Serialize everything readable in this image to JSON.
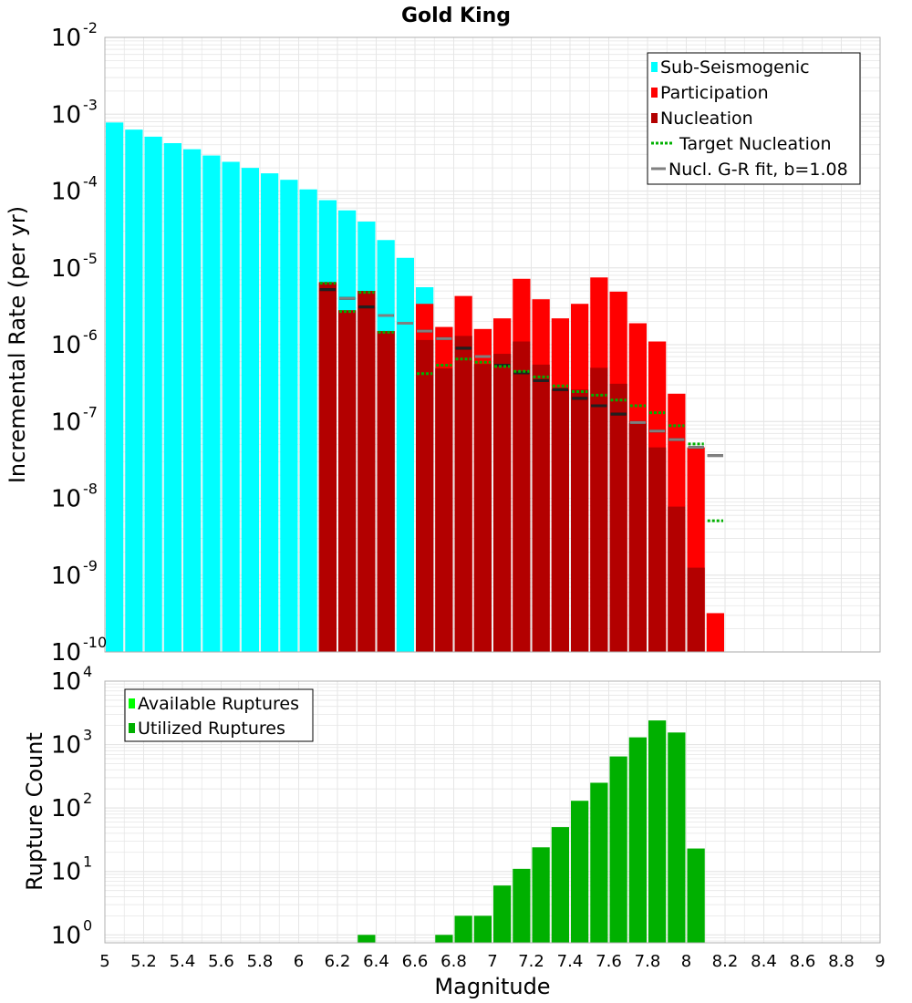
{
  "colors": {
    "sub_seismogenic": "#00ffff",
    "participation": "#ff0000",
    "nucleation": "#b30000",
    "target_nucleation": "#00b000",
    "gr_fit": "#808080",
    "available": "#00ff00",
    "utilized": "#00b000",
    "grid": "#e6e6e6",
    "frame": "#b0b0b0"
  },
  "chart_data": [
    {
      "type": "bar",
      "title": "Gold King",
      "xlabel": "",
      "ylabel": "Incremental Rate (per yr)",
      "y_scale": "log",
      "xlim": [
        5,
        9
      ],
      "ylim": [
        1e-10,
        0.01
      ],
      "y_tick_exponents": [
        -10,
        -9,
        -8,
        -7,
        -6,
        -5,
        -4,
        -3,
        -2
      ],
      "bin_width": 0.1,
      "legend_position": "top-right",
      "legend": [
        {
          "label": "Sub-Seismogenic",
          "symbol": "bar",
          "color": "#00ffff"
        },
        {
          "label": "Participation",
          "symbol": "bar",
          "color": "#ff0000"
        },
        {
          "label": "Nucleation",
          "symbol": "bar",
          "color": "#b30000"
        },
        {
          "label": "Target Nucleation",
          "symbol": "dotted-line",
          "color": "#00b000"
        },
        {
          "label": "Nucl. G-R fit, b=1.08",
          "symbol": "line",
          "color": "#808080"
        }
      ],
      "series": [
        {
          "name": "Sub-Seismogenic",
          "x": [
            5.05,
            5.15,
            5.25,
            5.35,
            5.45,
            5.55,
            5.65,
            5.75,
            5.85,
            5.95,
            6.05,
            6.15,
            6.25,
            6.35,
            6.45,
            6.55,
            6.65
          ],
          "values": [
            0.00078,
            0.00063,
            0.00051,
            0.00042,
            0.00035,
            0.00029,
            0.00024,
            0.0002,
            0.00017,
            0.00014,
            0.000105,
            7.6e-05,
            5.6e-05,
            4e-05,
            2.3e-05,
            1.35e-05,
            5.6e-06
          ]
        },
        {
          "name": "Participation",
          "x": [
            6.15,
            6.25,
            6.35,
            6.45,
            6.55,
            6.65,
            6.75,
            6.85,
            6.95,
            7.05,
            7.15,
            7.25,
            7.35,
            7.45,
            7.55,
            7.65,
            7.75,
            7.85,
            7.95,
            8.05,
            8.15
          ],
          "values": [
            6.5e-06,
            2.8e-06,
            5e-06,
            1.5e-06,
            1e-10,
            3.4e-06,
            1.7e-06,
            4.3e-06,
            1.6e-06,
            2.2e-06,
            7.2e-06,
            3.9e-06,
            2.2e-06,
            3.4e-06,
            7.5e-06,
            4.9e-06,
            1.9e-06,
            1.1e-06,
            2.3e-07,
            4.6e-08,
            3.2e-10
          ]
        },
        {
          "name": "Nucleation",
          "x": [
            6.15,
            6.25,
            6.35,
            6.45,
            6.55,
            6.65,
            6.75,
            6.85,
            6.95,
            7.05,
            7.15,
            7.25,
            7.35,
            7.45,
            7.55,
            7.65,
            7.75,
            7.85,
            7.95,
            8.05
          ],
          "values": [
            6.5e-06,
            2.8e-06,
            5e-06,
            1.5e-06,
            1e-10,
            1.15e-06,
            4.9e-07,
            1.3e-06,
            5.6e-07,
            7.6e-07,
            1.1e-06,
            5.5e-07,
            2.6e-07,
            2.6e-07,
            5e-07,
            3.1e-07,
            9.5e-08,
            4.6e-08,
            7.8e-09,
            1.25e-09
          ]
        },
        {
          "name": "Target Nucleation",
          "x": [
            6.15,
            6.25,
            6.35,
            6.45,
            6.65,
            6.75,
            6.85,
            6.95,
            7.05,
            7.15,
            7.25,
            7.35,
            7.45,
            7.55,
            7.65,
            7.75,
            7.85,
            7.95,
            8.05,
            8.15
          ],
          "values": [
            6.3e-06,
            2.7e-06,
            4.8e-06,
            1.45e-06,
            4.2e-07,
            5.4e-07,
            6.5e-07,
            5.9e-07,
            5.2e-07,
            4.5e-07,
            3.8e-07,
            2.9e-07,
            2.45e-07,
            2.2e-07,
            1.9e-07,
            1.6e-07,
            1.3e-07,
            8.8e-08,
            5.1e-08,
            5.1e-09
          ]
        },
        {
          "name": "Nucl. G-R fit, b=1.08",
          "x": [
            6.15,
            6.25,
            6.35,
            6.45,
            6.55,
            6.65,
            6.75,
            6.85,
            6.95,
            7.05,
            7.15,
            7.25,
            7.35,
            7.45,
            7.55,
            7.65,
            7.75,
            7.85,
            7.95,
            8.05,
            8.15
          ],
          "values": [
            5.2e-06,
            4e-06,
            3.1e-06,
            2.4e-06,
            1.9e-06,
            1.5e-06,
            1.2e-06,
            9e-07,
            7e-07,
            5.4e-07,
            4.3e-07,
            3.4e-07,
            2.6e-07,
            2e-07,
            1.6e-07,
            1.25e-07,
            9.7e-08,
            7.5e-08,
            5.8e-08,
            4.6e-08,
            3.6e-08
          ]
        }
      ]
    },
    {
      "type": "bar",
      "title": "",
      "xlabel": "Magnitude",
      "ylabel": "Rupture Count",
      "y_scale": "log",
      "xlim": [
        5,
        9
      ],
      "ylim": [
        0.75,
        10000
      ],
      "y_tick_exponents": [
        0,
        1,
        2,
        3,
        4
      ],
      "x_ticks": [
        "5",
        "5.2",
        "5.4",
        "5.6",
        "5.8",
        "6",
        "6.2",
        "6.4",
        "6.6",
        "6.8",
        "7",
        "7.2",
        "7.4",
        "7.6",
        "7.8",
        "8",
        "8.2",
        "8.4",
        "8.6",
        "8.8",
        "9"
      ],
      "bin_width": 0.1,
      "legend_position": "top-left",
      "legend": [
        {
          "label": "Available Ruptures",
          "symbol": "bar",
          "color": "#00ff00"
        },
        {
          "label": "Utilized Ruptures",
          "symbol": "bar",
          "color": "#00b000"
        }
      ],
      "series": [
        {
          "name": "Utilized Ruptures",
          "x": [
            6.35,
            6.75,
            6.85,
            6.95,
            7.05,
            7.15,
            7.25,
            7.35,
            7.45,
            7.55,
            7.65,
            7.75,
            7.85,
            7.95,
            8.05
          ],
          "values": [
            1,
            1,
            2,
            2,
            6,
            11,
            24,
            50,
            130,
            250,
            650,
            1300,
            2400,
            1550,
            23
          ]
        }
      ]
    }
  ]
}
